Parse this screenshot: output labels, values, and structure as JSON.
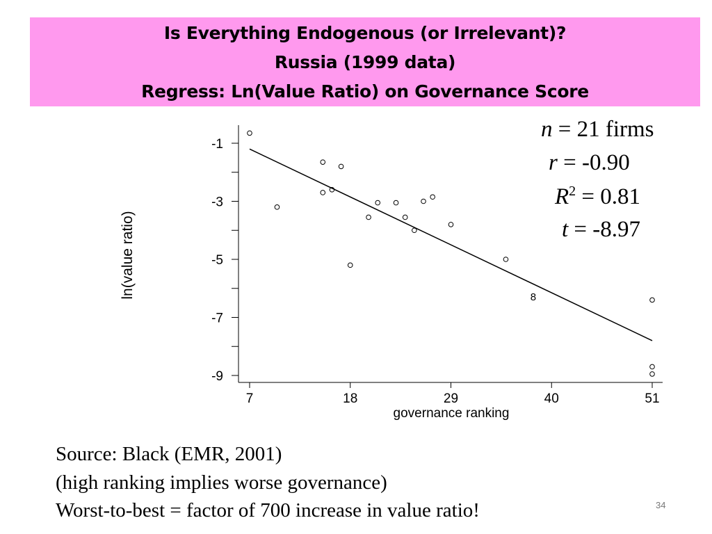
{
  "header": {
    "title_lines": [
      "Is Everything Endogenous (or Irrelevant)?",
      "Russia (1999 data)",
      "Regress: Ln(Value Ratio) on Governance Score"
    ],
    "band_color": "#ff99ee"
  },
  "stats": {
    "n_var": "n",
    "n_rest": "= 21 firms",
    "r_var": "r",
    "r_rest": "= -0.90",
    "R2_var": "R",
    "R2_sup": "2",
    "R2_rest": "= 0.81",
    "t_var": "t",
    "t_rest": "= -8.97"
  },
  "chart_data": {
    "type": "scatter",
    "xlabel": "governance ranking",
    "ylabel": "ln(value ratio)",
    "x_ticks": [
      7,
      18,
      29,
      40,
      51
    ],
    "x_tick_labels": [
      "7",
      "18",
      "29",
      "40",
      "51"
    ],
    "y_ticks": [
      -1,
      -3,
      -5,
      -7,
      -9
    ],
    "y_tick_labels": [
      "-1",
      "-3",
      "-5",
      "-7",
      "-9"
    ],
    "y_minor_ticks": [
      -2,
      -4,
      -6,
      -8
    ],
    "xlim": [
      7,
      51
    ],
    "ylim": [
      -9,
      -1
    ],
    "points": [
      {
        "x": 7,
        "y": -0.65
      },
      {
        "x": 10,
        "y": -3.2
      },
      {
        "x": 15,
        "y": -1.65
      },
      {
        "x": 15,
        "y": -2.7
      },
      {
        "x": 16,
        "y": -2.6
      },
      {
        "x": 17,
        "y": -1.8
      },
      {
        "x": 18,
        "y": -5.2
      },
      {
        "x": 20,
        "y": -3.55
      },
      {
        "x": 21,
        "y": -3.05
      },
      {
        "x": 23,
        "y": -3.05
      },
      {
        "x": 24,
        "y": -3.55
      },
      {
        "x": 25,
        "y": -4.0
      },
      {
        "x": 26,
        "y": -3.0
      },
      {
        "x": 27,
        "y": -2.85
      },
      {
        "x": 29,
        "y": -3.8
      },
      {
        "x": 35,
        "y": -5.0
      },
      {
        "x": 51,
        "y": -6.4
      },
      {
        "x": 51,
        "y": -8.7
      },
      {
        "x": 51,
        "y": -8.95
      }
    ],
    "stacked_points": [
      {
        "x": 38,
        "y": -6.25,
        "label": "8"
      }
    ],
    "fit_line": {
      "x": [
        7,
        51
      ],
      "y": [
        -1.2,
        -7.8
      ]
    },
    "grid": false,
    "legend": "none"
  },
  "source": {
    "lines": [
      "Source:  Black (EMR, 2001)",
      "(high ranking implies worse governance)",
      "Worst-to-best = factor of 700 increase in value ratio!"
    ]
  },
  "page_number": "34"
}
